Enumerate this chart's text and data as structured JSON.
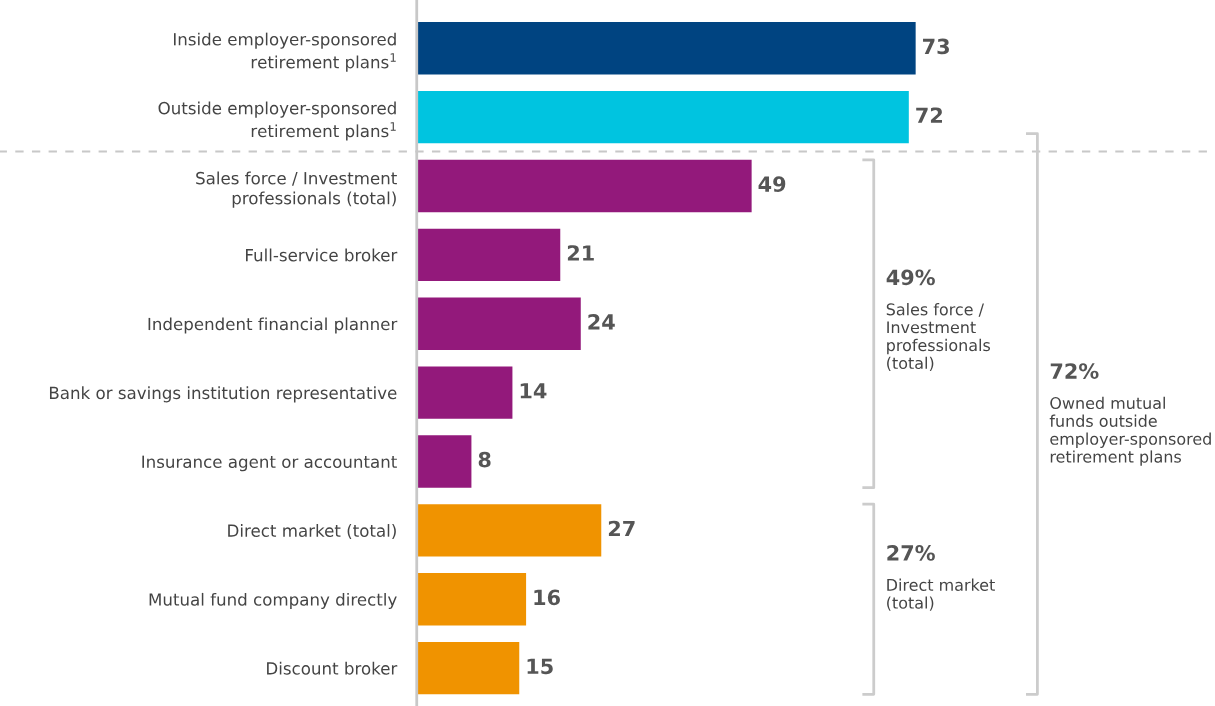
{
  "chart_data": {
    "type": "bar",
    "orientation": "horizontal",
    "categories": [
      "Inside employer-sponsored\nretirement plans$^{1}$",
      "Outside employer-sponsored\nretirement plans$^{1}$",
      "Sales force / Investment\nprofessionals (total)",
      "Full-service broker",
      "Independent financial planner",
      "Bank or savings institution representative",
      "Insurance agent or accountant",
      "Direct market (total)",
      "Mutual fund company directly",
      "Discount broker"
    ],
    "values": [
      73,
      72,
      49,
      21,
      24,
      14,
      8,
      27,
      16,
      15
    ],
    "colors": [
      "#004481",
      "#00c4e0",
      "#93197b",
      "#93197b",
      "#93197b",
      "#93197b",
      "#93197b",
      "#f09300",
      "#f09300",
      "#f09300"
    ],
    "data_labels": true,
    "annotations": [
      "49%",
      "Sales force /\nInvestment\nprofessionals\n(total)",
      "27%",
      "Direct market\n(total)",
      "72%",
      "Owned mutual\nfunds outside\nemployer-sponsored\nretirement plans"
    ]
  }
}
